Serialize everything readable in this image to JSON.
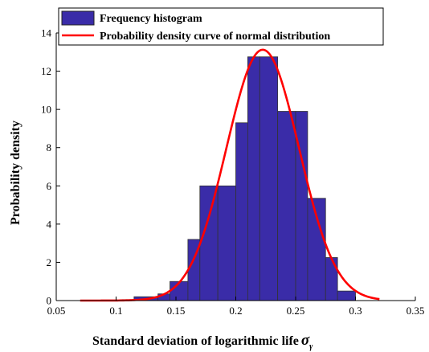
{
  "chart_data": {
    "type": "bar",
    "title": "",
    "xlabel": "Standard deviation of logarithmic life",
    "xlabel_symbol": "σ",
    "xlabel_subscript": "γ",
    "ylabel": "Probability density",
    "xlim": [
      0.05,
      0.35
    ],
    "ylim": [
      0,
      14
    ],
    "xticks": [
      "0.05",
      "0.1",
      "0.15",
      "0.2",
      "0.25",
      "0.3",
      "0.35"
    ],
    "yticks": [
      "0",
      "2",
      "4",
      "6",
      "8",
      "10",
      "12",
      "14"
    ],
    "grid": false,
    "legend_position": "top-left",
    "legend": [
      "Frequency histogram",
      "Probability density curve of normal distribution"
    ],
    "histogram": {
      "name": "Frequency histogram",
      "color": "#3a2ca8",
      "edge_color": "#333333",
      "bins": [
        {
          "x0": 0.095,
          "x1": 0.105,
          "value": 0.02
        },
        {
          "x0": 0.105,
          "x1": 0.115,
          "value": 0.05
        },
        {
          "x0": 0.115,
          "x1": 0.135,
          "value": 0.2
        },
        {
          "x0": 0.135,
          "x1": 0.145,
          "value": 0.35
        },
        {
          "x0": 0.145,
          "x1": 0.16,
          "value": 1.0
        },
        {
          "x0": 0.16,
          "x1": 0.17,
          "value": 3.2
        },
        {
          "x0": 0.17,
          "x1": 0.185,
          "value": 6.0
        },
        {
          "x0": 0.185,
          "x1": 0.2,
          "value": 6.0
        },
        {
          "x0": 0.2,
          "x1": 0.21,
          "value": 9.3
        },
        {
          "x0": 0.21,
          "x1": 0.22,
          "value": 12.75
        },
        {
          "x0": 0.22,
          "x1": 0.235,
          "value": 12.75
        },
        {
          "x0": 0.235,
          "x1": 0.25,
          "value": 9.9
        },
        {
          "x0": 0.25,
          "x1": 0.26,
          "value": 9.9
        },
        {
          "x0": 0.26,
          "x1": 0.275,
          "value": 5.35
        },
        {
          "x0": 0.275,
          "x1": 0.285,
          "value": 2.25
        },
        {
          "x0": 0.285,
          "x1": 0.3,
          "value": 0.5
        }
      ]
    },
    "curve": {
      "name": "Probability density curve of normal distribution",
      "color": "#ff0000",
      "mean": 0.2225,
      "std": 0.0304,
      "x_range": [
        0.07,
        0.32
      ]
    }
  }
}
